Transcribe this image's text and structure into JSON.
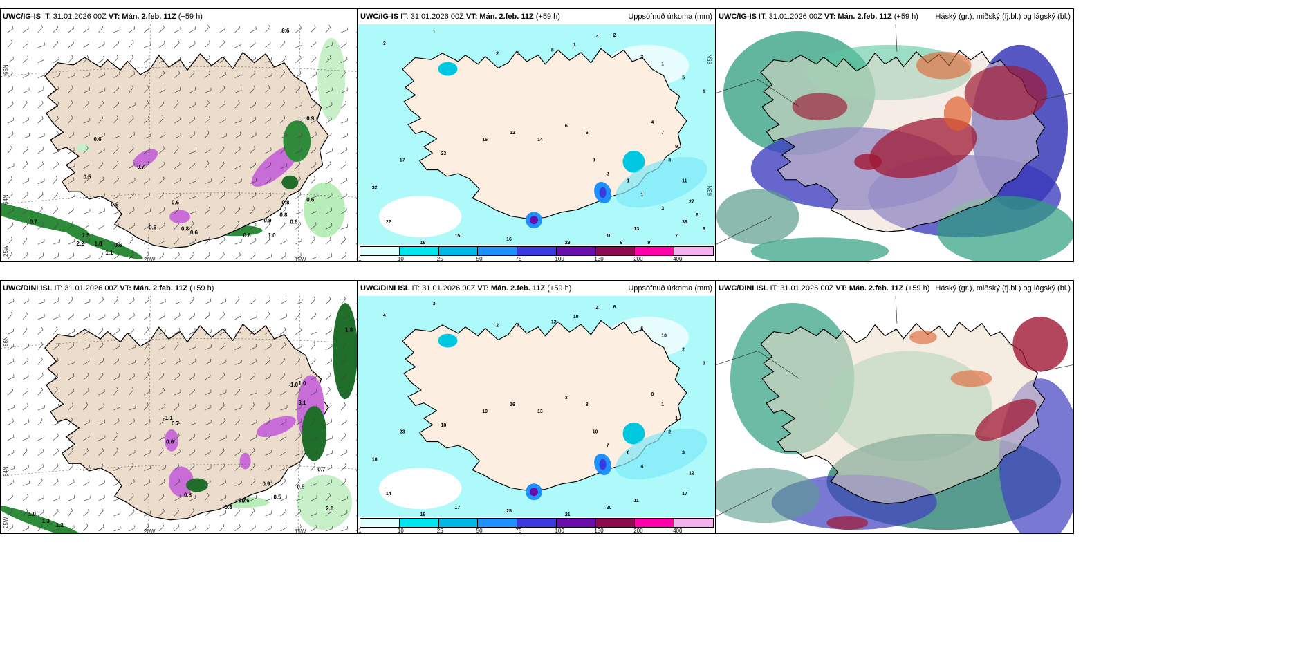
{
  "panels": [
    {
      "model": "UWC/IG-IS",
      "it": " IT: 31.01.2026 00Z ",
      "vt_label": "VT:",
      "vt": " Mán. 2.feb. 11Z",
      "lead": " (+59 h)",
      "right": ""
    },
    {
      "model": "UWC/IG-IS",
      "it": " IT: 31.01.2026 00Z ",
      "vt_label": "VT:",
      "vt": " Mán. 2.feb. 11Z",
      "lead": " (+59 h)",
      "right": "Uppsöfnuð úrkoma (mm)"
    },
    {
      "model": "UWC/IG-IS",
      "it": " IT: 31.01.2026 00Z ",
      "vt_label": "VT:",
      "vt": " Mán. 2.feb. 11Z",
      "lead": " (+59 h)",
      "right": "Háský (gr.), miðský (fj.bl.) og lágský (bl.)"
    },
    {
      "model": "UWC/DINI ISL",
      "it": " IT: 31.01.2026 00Z ",
      "vt_label": "VT:",
      "vt": " Mán. 2.feb. 11Z",
      "lead": " (+59 h)",
      "right": ""
    },
    {
      "model": "UWC/DINI ISL",
      "it": " IT: 31.01.2026 00Z ",
      "vt_label": "VT:",
      "vt": " Mán. 2.feb. 11Z",
      "lead": " (+59 h)",
      "right": "Uppsöfnuð úrkoma (mm)"
    },
    {
      "model": "UWC/DINI ISL",
      "it": " IT: 31.01.2026 00Z ",
      "vt_label": "VT:",
      "vt": " Mán. 2.feb. 11Z",
      "lead": " (+59 h)",
      "right": "Háský (gr.), miðský (fj.bl.) og lágský (bl.)"
    }
  ],
  "axis_labels": {
    "lat66": "66N",
    "lat64": "64N",
    "lat63": "63N",
    "lat65": "65N",
    "lon25": "25W",
    "lon20": "20W",
    "lon15": "15W"
  },
  "precip_colorbar": {
    "labels": [
      "1",
      "10",
      "25",
      "50",
      "75",
      "100",
      "150",
      "200",
      "400"
    ],
    "colors": [
      "#e0ffff",
      "#00e5ee",
      "#00b8e6",
      "#1e90ff",
      "#3a3adf",
      "#6a0dad",
      "#8b0a50",
      "#ff00aa",
      "#f5b0f0"
    ]
  },
  "snow_labels_top": [
    "0.6",
    "0.6",
    "0.5",
    "0.7",
    "0.9",
    "0.7",
    "1.5",
    "1.8",
    "0.6",
    "0.9",
    "0.6",
    "1.1",
    "0.6",
    "0.8",
    "0.6",
    "0.8",
    "1.0",
    "0.8",
    "0.9",
    "0.6",
    "0.6",
    "0.8",
    "2.2"
  ],
  "snow_labels_bottom": [
    "1.8",
    "-1.0",
    "1.0",
    "-1.1",
    "0.7",
    "0.6",
    "0.8",
    "0.9",
    "0.7",
    "0.5",
    "0.6",
    "0.8",
    "0.7",
    "0.9",
    "1.0",
    "1.3",
    "1.2",
    "2.0",
    "3.1"
  ],
  "precip_labels_top": [
    "1",
    "3",
    "2",
    "5",
    "8",
    "1",
    "4",
    "2",
    "3",
    "1",
    "5",
    "6",
    "4",
    "7",
    "9",
    "8",
    "11",
    "27",
    "36",
    "13",
    "10",
    "23",
    "16",
    "15",
    "19",
    "22",
    "32",
    "17",
    "23",
    "16",
    "12",
    "14",
    "6",
    "6",
    "9",
    "2",
    "1",
    "1",
    "3",
    "8",
    "9",
    "7",
    "9",
    "9"
  ],
  "precip_labels_bottom": [
    "3",
    "4",
    "2",
    "7",
    "12",
    "10",
    "4",
    "6",
    "5",
    "10",
    "2",
    "3",
    "8",
    "1",
    "1",
    "2",
    "3",
    "12",
    "17",
    "11",
    "20",
    "21",
    "25",
    "17",
    "19",
    "14",
    "18",
    "23",
    "18",
    "19",
    "16",
    "13",
    "3",
    "8",
    "10",
    "7",
    "6",
    "4"
  ]
}
